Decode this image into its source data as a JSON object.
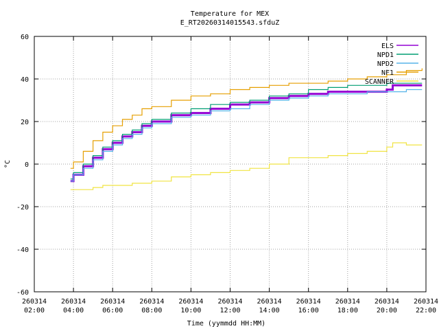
{
  "chart_data": {
    "type": "line",
    "title": "Temperature for MEX",
    "subtitle": "E_RT20260314015543.sfduZ",
    "xlabel": "Time (yymmdd HH:MM)",
    "ylabel": "°C",
    "ylim": [
      -60,
      60
    ],
    "yticks": [
      -60,
      -40,
      -20,
      0,
      20,
      40,
      60
    ],
    "xlim": [
      "2026-03-14 02:00",
      "2026-03-14 22:00"
    ],
    "xticks": [
      {
        "t": 2,
        "date": "260314",
        "time": "02:00"
      },
      {
        "t": 4,
        "date": "260314",
        "time": "04:00"
      },
      {
        "t": 6,
        "date": "260314",
        "time": "06:00"
      },
      {
        "t": 8,
        "date": "260314",
        "time": "08:00"
      },
      {
        "t": 10,
        "date": "260314",
        "time": "10:00"
      },
      {
        "t": 12,
        "date": "260314",
        "time": "12:00"
      },
      {
        "t": 14,
        "date": "260314",
        "time": "14:00"
      },
      {
        "t": 16,
        "date": "260314",
        "time": "16:00"
      },
      {
        "t": 18,
        "date": "260314",
        "time": "18:00"
      },
      {
        "t": 20,
        "date": "260314",
        "time": "20:00"
      },
      {
        "t": 22,
        "date": "260314",
        "time": "22:00"
      }
    ],
    "grid": true,
    "legend_position": "top-right",
    "series": [
      {
        "name": "ELS",
        "color": "#9400d3",
        "x": [
          3.85,
          4.0,
          4.5,
          5.0,
          5.5,
          6.0,
          6.5,
          7.0,
          7.5,
          8.0,
          9.0,
          10.0,
          11.0,
          12.0,
          13.0,
          14.0,
          15.0,
          16.0,
          17.0,
          18.0,
          19.0,
          20.0,
          20.3,
          21.0,
          21.8
        ],
        "y": [
          -8,
          -5,
          -1,
          3,
          7,
          10,
          13,
          15,
          18,
          20,
          23,
          24,
          26,
          28,
          29,
          31,
          32,
          33,
          34,
          34,
          34,
          35,
          37,
          37,
          37
        ]
      },
      {
        "name": "NPD1",
        "color": "#009e73",
        "x": [
          3.85,
          4.0,
          4.5,
          5.0,
          5.5,
          6.0,
          6.5,
          7.0,
          7.5,
          8.0,
          9.0,
          10.0,
          11.0,
          12.0,
          13.0,
          14.0,
          15.0,
          16.0,
          17.0,
          18.0,
          19.0,
          20.0,
          21.0,
          21.8
        ],
        "y": [
          -7,
          -4,
          0,
          4,
          8,
          11,
          14,
          16,
          19,
          21,
          24,
          26,
          28,
          29,
          30,
          32,
          33,
          35,
          36,
          37,
          37,
          38,
          38,
          38
        ]
      },
      {
        "name": "NPD2",
        "color": "#56b4e9",
        "x": [
          3.85,
          4.0,
          4.5,
          5.0,
          5.5,
          6.0,
          6.5,
          7.0,
          7.5,
          8.0,
          9.0,
          10.0,
          11.0,
          12.0,
          13.0,
          14.0,
          15.0,
          16.0,
          17.0,
          18.0,
          19.0,
          20.0,
          21.0,
          21.8
        ],
        "y": [
          -8,
          -5,
          -2,
          2,
          6,
          9,
          12,
          14,
          17,
          19,
          22,
          23,
          25,
          26,
          28,
          30,
          31,
          32,
          33,
          33,
          34,
          34,
          35,
          35
        ]
      },
      {
        "name": "NF1",
        "color": "#e69f00",
        "x": [
          3.85,
          4.0,
          4.5,
          5.0,
          5.5,
          6.0,
          6.5,
          7.0,
          7.5,
          8.0,
          9.0,
          10.0,
          11.0,
          12.0,
          13.0,
          14.0,
          15.0,
          16.0,
          17.0,
          18.0,
          19.0,
          20.0,
          21.0,
          21.8
        ],
        "y": [
          -2,
          1,
          6,
          11,
          15,
          18,
          21,
          23,
          26,
          27,
          30,
          32,
          33,
          35,
          36,
          37,
          38,
          38,
          39,
          40,
          41,
          42,
          44,
          45
        ]
      },
      {
        "name": "SCANNER",
        "color": "#f0e442",
        "x": [
          3.85,
          4.0,
          4.5,
          5.0,
          5.5,
          6.0,
          7.0,
          8.0,
          9.0,
          10.0,
          11.0,
          12.0,
          13.0,
          14.0,
          15.0,
          16.0,
          17.0,
          18.0,
          19.0,
          20.0,
          20.3,
          21.0,
          21.8
        ],
        "y": [
          -12,
          -12,
          -12,
          -11,
          -10,
          -10,
          -9,
          -8,
          -6,
          -5,
          -4,
          -3,
          -2,
          0,
          3,
          3,
          4,
          5,
          6,
          8,
          10,
          9,
          9
        ]
      }
    ]
  }
}
